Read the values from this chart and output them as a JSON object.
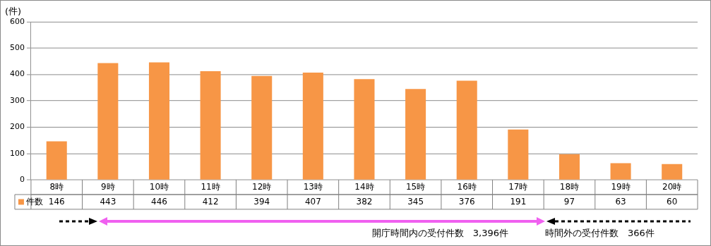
{
  "chart_data": {
    "type": "bar",
    "ylabel": "(件)",
    "categories": [
      "8時",
      "9時",
      "10時",
      "11時",
      "12時",
      "13時",
      "14時",
      "15時",
      "16時",
      "17時",
      "18時",
      "19時",
      "20時"
    ],
    "series": [
      {
        "name": "件数",
        "color": "#f79646",
        "values": [
          146,
          443,
          446,
          412,
          394,
          407,
          382,
          345,
          376,
          191,
          97,
          63,
          60
        ]
      }
    ],
    "ylim": [
      0,
      600
    ],
    "yticks": [
      0,
      100,
      200,
      300,
      400,
      500,
      600
    ],
    "grid": "y",
    "data_labels": true,
    "legend": "bottom left",
    "annotations": [
      "開庁時間内の受付件数　3,396件",
      "時間外の受付件数　366件"
    ]
  }
}
